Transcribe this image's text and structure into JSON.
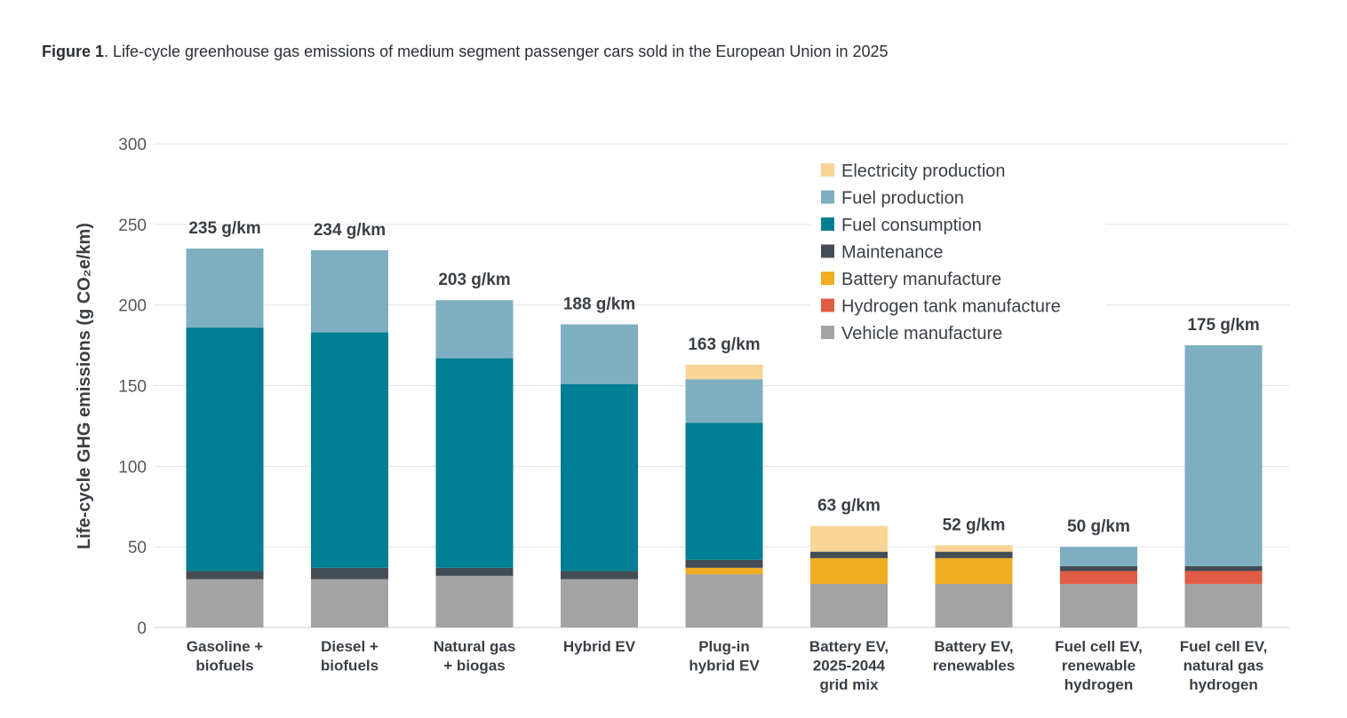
{
  "caption": {
    "label": "Figure 1",
    "text": ". Life-cycle greenhouse gas emissions of medium segment passenger cars sold in the European Union in 2025"
  },
  "chart_data": {
    "type": "bar",
    "stacked": true,
    "ylabel": "Life-cycle GHG emissions (g CO₂e/km)",
    "ylim": [
      0,
      300
    ],
    "yticks": [
      0,
      50,
      100,
      150,
      200,
      250,
      300
    ],
    "grid": true,
    "legend_position": "top-right",
    "categories": [
      [
        "Gasoline +",
        "biofuels"
      ],
      [
        "Diesel +",
        "biofuels"
      ],
      [
        "Natural gas",
        "+ biogas"
      ],
      [
        "Hybrid EV"
      ],
      [
        "Plug-in",
        "hybrid EV"
      ],
      [
        "Battery EV,",
        "2025-2044",
        "grid mix"
      ],
      [
        "Battery EV,",
        "renewables"
      ],
      [
        "Fuel cell EV,",
        "renewable",
        "hydrogen"
      ],
      [
        "Fuel cell EV,",
        "natural gas",
        "hydrogen"
      ]
    ],
    "totals": [
      "235 g/km",
      "234 g/km",
      "203 g/km",
      "188 g/km",
      "163 g/km",
      "63 g/km",
      "52 g/km",
      "50 g/km",
      "175 g/km"
    ],
    "series": [
      {
        "name": "Vehicle manufacture",
        "color": "#a3a3a3",
        "values": [
          30,
          30,
          32,
          30,
          33,
          27,
          27,
          27,
          27
        ]
      },
      {
        "name": "Hydrogen tank manufacture",
        "color": "#e05c45",
        "values": [
          0,
          0,
          0,
          0,
          0,
          0,
          0,
          8,
          8
        ]
      },
      {
        "name": "Battery manufacture",
        "color": "#f0ad22",
        "values": [
          0,
          0,
          0,
          0,
          4,
          16,
          16,
          0,
          0
        ]
      },
      {
        "name": "Maintenance",
        "color": "#444c55",
        "values": [
          5,
          7,
          5,
          5,
          5,
          4,
          4,
          3,
          3
        ]
      },
      {
        "name": "Fuel consumption",
        "color": "#007e93",
        "values": [
          151,
          146,
          130,
          116,
          85,
          0,
          0,
          0,
          0
        ]
      },
      {
        "name": "Fuel production",
        "color": "#7eafc0",
        "values": [
          49,
          51,
          36,
          37,
          27,
          0,
          0,
          12,
          137
        ]
      },
      {
        "name": "Electricity production",
        "color": "#f9d497",
        "values": [
          0,
          0,
          0,
          0,
          9,
          16,
          4,
          0,
          0
        ]
      }
    ],
    "legend_order": [
      "Electricity production",
      "Fuel production",
      "Fuel consumption",
      "Maintenance",
      "Battery manufacture",
      "Hydrogen tank manufacture",
      "Vehicle manufacture"
    ]
  }
}
